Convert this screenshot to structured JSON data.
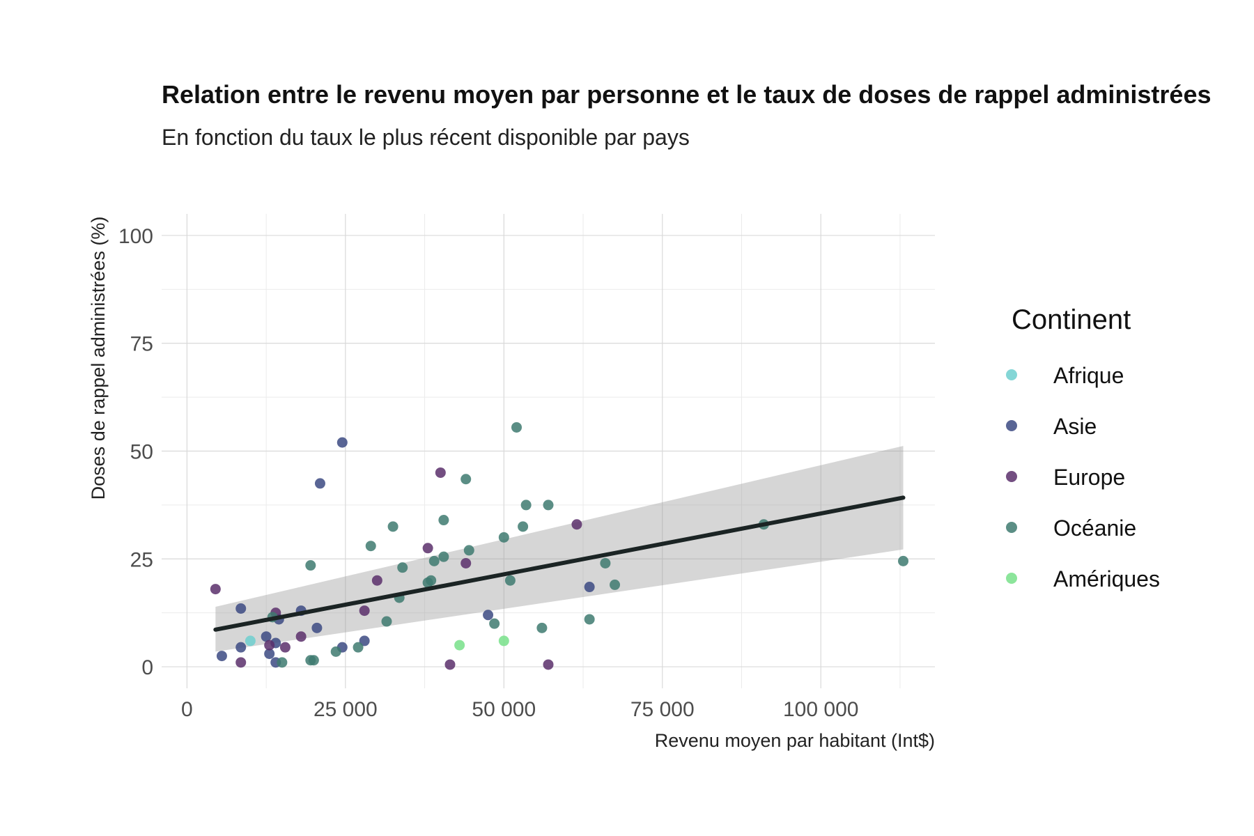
{
  "chart_data": {
    "type": "scatter",
    "title": "Relation entre le revenu moyen par personne et le taux de doses de rappel administrées",
    "subtitle": "En fonction du taux le plus récent disponible par pays",
    "xlabel": "Revenu moyen par habitant (Int$)",
    "ylabel": "Doses de rappel administrées (%)",
    "xlim": [
      -4000,
      118000
    ],
    "ylim": [
      -5,
      105
    ],
    "x_ticks": [
      {
        "value": 0,
        "label": "0"
      },
      {
        "value": 25000,
        "label": "25 000"
      },
      {
        "value": 50000,
        "label": "50 000"
      },
      {
        "value": 75000,
        "label": "75 000"
      },
      {
        "value": 100000,
        "label": "100 000"
      }
    ],
    "y_ticks": [
      {
        "value": 0,
        "label": "0"
      },
      {
        "value": 25,
        "label": "25"
      },
      {
        "value": 50,
        "label": "50"
      },
      {
        "value": 75,
        "label": "75"
      },
      {
        "value": 100,
        "label": "100"
      }
    ],
    "grid": true,
    "legend": {
      "title": "Continent",
      "position": "right",
      "entries": [
        {
          "name": "Afrique",
          "color": "#6fcfcf"
        },
        {
          "name": "Asie",
          "color": "#3c4a82"
        },
        {
          "name": "Europe",
          "color": "#5b2f6b"
        },
        {
          "name": "Océanie",
          "color": "#3e7a70"
        },
        {
          "name": "Amériques",
          "color": "#78e08a"
        }
      ]
    },
    "series": [
      {
        "name": "Afrique",
        "points": [
          [
            10000,
            6
          ]
        ]
      },
      {
        "name": "Asie",
        "points": [
          [
            5500,
            2.5
          ],
          [
            8500,
            13.5
          ],
          [
            8500,
            4.5
          ],
          [
            12500,
            7
          ],
          [
            13000,
            3
          ],
          [
            14000,
            5.5
          ],
          [
            14000,
            1
          ],
          [
            14500,
            11
          ],
          [
            18000,
            13
          ],
          [
            20500,
            9
          ],
          [
            21000,
            42.5
          ],
          [
            24500,
            52
          ],
          [
            24500,
            4.5
          ],
          [
            28000,
            6
          ],
          [
            47500,
            12
          ],
          [
            63500,
            18.5
          ]
        ]
      },
      {
        "name": "Europe",
        "points": [
          [
            4500,
            18
          ],
          [
            8500,
            1
          ],
          [
            13000,
            5
          ],
          [
            14000,
            12.5
          ],
          [
            15500,
            4.5
          ],
          [
            18000,
            7
          ],
          [
            28000,
            13
          ],
          [
            30000,
            20
          ],
          [
            38000,
            27.5
          ],
          [
            40000,
            45
          ],
          [
            41500,
            0.5
          ],
          [
            44000,
            24
          ],
          [
            57000,
            0.5
          ],
          [
            61500,
            33
          ]
        ]
      },
      {
        "name": "Océanie",
        "points": [
          [
            13500,
            11.5
          ],
          [
            15000,
            1
          ],
          [
            19500,
            1.5
          ],
          [
            19500,
            23.5
          ],
          [
            20000,
            1.5
          ],
          [
            23500,
            3.5
          ],
          [
            27000,
            4.5
          ],
          [
            29000,
            28
          ],
          [
            31500,
            10.5
          ],
          [
            32500,
            32.5
          ],
          [
            33500,
            16
          ],
          [
            34000,
            23
          ],
          [
            38000,
            19.5
          ],
          [
            38500,
            20
          ],
          [
            39000,
            24.5
          ],
          [
            40500,
            34
          ],
          [
            40500,
            25.5
          ],
          [
            44000,
            43.5
          ],
          [
            44500,
            27
          ],
          [
            48500,
            10
          ],
          [
            50000,
            30
          ],
          [
            51000,
            20
          ],
          [
            52000,
            55.5
          ],
          [
            53000,
            32.5
          ],
          [
            53500,
            37.5
          ],
          [
            56000,
            9
          ],
          [
            57000,
            37.5
          ],
          [
            63500,
            11
          ],
          [
            66000,
            24
          ],
          [
            67500,
            19
          ],
          [
            91000,
            33
          ],
          [
            113000,
            24.5
          ]
        ]
      },
      {
        "name": "Amériques",
        "points": [
          [
            43000,
            5
          ],
          [
            50000,
            6
          ]
        ]
      }
    ],
    "trend": {
      "type": "linear",
      "x": [
        4500,
        113000
      ],
      "y": [
        8.6,
        39.2
      ],
      "ci_lower": [
        3.5,
        27.2
      ],
      "ci_upper": [
        13.9,
        51.2
      ]
    }
  }
}
